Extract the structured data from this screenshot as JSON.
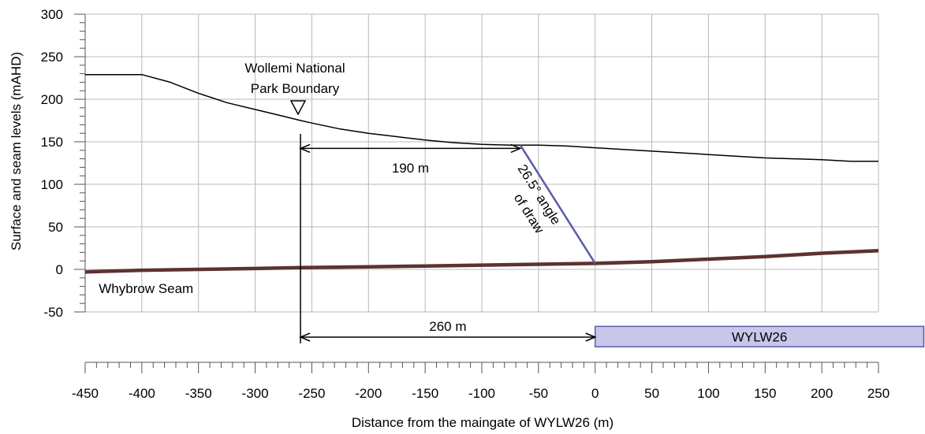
{
  "chart_data": {
    "type": "line",
    "title": "",
    "xlabel": "Distance from the maingate of WYLW26 (m)",
    "ylabel": "Surface and seam levels (mAHD)",
    "xlim": [
      -450,
      250
    ],
    "ylim": [
      -50,
      300
    ],
    "x_ticks": [
      -450,
      -400,
      -350,
      -300,
      -250,
      -200,
      -150,
      -100,
      -50,
      0,
      50,
      100,
      150,
      200,
      250
    ],
    "y_ticks": [
      -50,
      0,
      50,
      100,
      150,
      200,
      250,
      300
    ],
    "x_tick_labels": [
      "-450",
      "-400",
      "-350",
      "-300",
      "-250",
      "-200",
      "-150",
      "-100",
      "-50",
      "0",
      "50",
      "100",
      "150",
      "200",
      "250"
    ],
    "y_tick_labels": [
      "-50",
      "0",
      "50",
      "100",
      "150",
      "200",
      "250",
      "300"
    ],
    "grid": true,
    "series": [
      {
        "name": "",
        "color": "#000000",
        "x": [
          -450,
          -425,
          -400,
          -375,
          -350,
          -325,
          -300,
          -275,
          -260,
          -250,
          -225,
          -200,
          -175,
          -150,
          -125,
          -100,
          -75,
          -65,
          -50,
          -25,
          0,
          25,
          50,
          75,
          100,
          125,
          150,
          175,
          200,
          225,
          250
        ],
        "y": [
          229,
          229,
          229,
          220,
          207,
          196,
          188,
          180,
          175,
          172,
          165,
          160,
          156,
          152,
          149,
          147,
          146,
          146,
          146,
          145,
          143,
          141,
          139,
          137,
          135,
          133,
          131,
          130,
          129,
          127,
          127
        ]
      },
      {
        "name": "Whybrow Seam",
        "color": "#5c3230",
        "x": [
          -450,
          -400,
          -350,
          -300,
          -260,
          -200,
          -150,
          -100,
          -50,
          0,
          50,
          100,
          150,
          200,
          250
        ],
        "y": [
          -3,
          -1,
          0,
          1,
          2,
          3,
          4,
          5,
          6,
          7,
          9,
          12,
          15,
          19,
          22
        ]
      }
    ],
    "annotations": {
      "boundary": {
        "label_line1": "Wollemi National",
        "label_line2": "Park Boundary",
        "x": -260
      },
      "dim_190": {
        "label": "190 m",
        "x1": -260,
        "x2": -66,
        "y": 145
      },
      "dim_260": {
        "label": "260 m",
        "x1": -260,
        "x2": 0,
        "y": -80
      },
      "angle_of_draw": {
        "line1": "26.5° angle",
        "line2": "of draw",
        "x1": -66,
        "y1": 146,
        "x2": 0,
        "y2": 7,
        "color": "#5b5bab"
      },
      "panel": {
        "label": "WYLW26",
        "x1": 0,
        "x2": 290,
        "y_top": -67,
        "y_bottom": -91,
        "fill": "#c9c7e9",
        "stroke": "#5b5bab"
      },
      "seam_label": {
        "label": "Whybrow Seam",
        "x": -438,
        "y": -22,
        "color": "#5c3230"
      }
    }
  }
}
